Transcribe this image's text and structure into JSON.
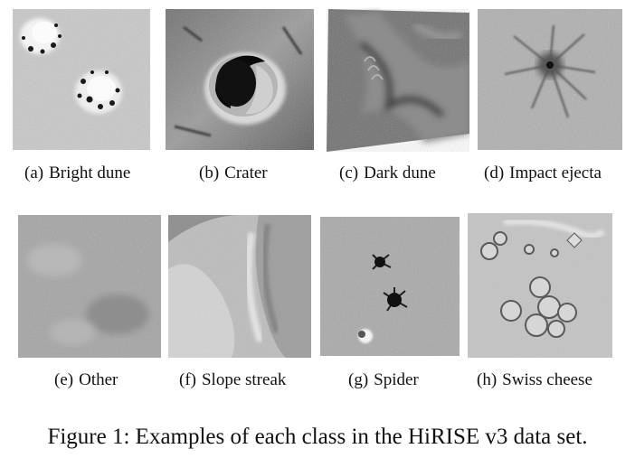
{
  "figure": {
    "caption": "Figure 1: Examples of each class in the HiRISE v3 data set.",
    "panels": [
      {
        "tag": "(a)",
        "label": "Bright dune"
      },
      {
        "tag": "(b)",
        "label": "Crater"
      },
      {
        "tag": "(c)",
        "label": "Dark dune"
      },
      {
        "tag": "(d)",
        "label": "Impact ejecta"
      },
      {
        "tag": "(e)",
        "label": "Other"
      },
      {
        "tag": "(f)",
        "label": "Slope streak"
      },
      {
        "tag": "(g)",
        "label": "Spider"
      },
      {
        "tag": "(h)",
        "label": "Swiss cheese"
      }
    ]
  }
}
